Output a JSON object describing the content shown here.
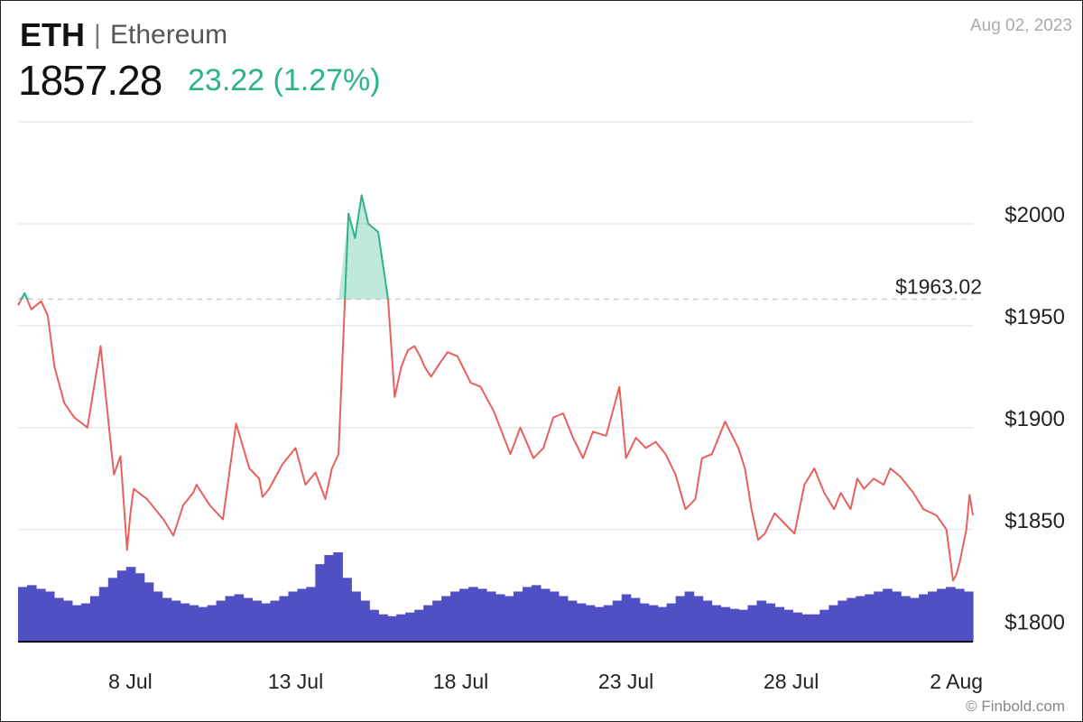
{
  "header": {
    "symbol": "ETH",
    "separator": "|",
    "name": "Ethereum",
    "price": "1857.28",
    "change": "23.22 (1.27%)",
    "date": "Aug 02, 2023"
  },
  "footer": {
    "credit": "© Finbold.com"
  },
  "colors": {
    "up": "#2db38a",
    "down": "#e8605d",
    "volume": "#5050c4",
    "grid": "#dddddd"
  },
  "chart_data": {
    "type": "line",
    "xlabel": "",
    "ylabel": "",
    "ylim": [
      1795,
      2050
    ],
    "y_ticks": [
      1800,
      1850,
      1900,
      1950,
      2000
    ],
    "y_tick_labels": [
      "$1800",
      "$1850",
      "$1900",
      "$1950",
      "$2000"
    ],
    "x_tick_positions": [
      5,
      10,
      15,
      20,
      25,
      30
    ],
    "x_tick_labels": [
      "8 Jul",
      "13 Jul",
      "18 Jul",
      "23 Jul",
      "28 Jul",
      "2 Aug"
    ],
    "xlim": [
      1.6,
      30.5
    ],
    "reference": {
      "value": 1963.02,
      "label": "$1963.02"
    },
    "grid": true,
    "series": [
      {
        "x": [
          1.6,
          1.8,
          2.0,
          2.3,
          2.5,
          2.7,
          3.0,
          3.3,
          3.7,
          4.1,
          4.5,
          4.7,
          4.9,
          5.0,
          5.1,
          5.5,
          6.0,
          6.3,
          6.6,
          6.9,
          7.0,
          7.4,
          7.8,
          8.2,
          8.6,
          8.9,
          9.0,
          9.2,
          9.6,
          10.0,
          10.3,
          10.6,
          10.9,
          11.1,
          11.3,
          11.6,
          11.8,
          12.0,
          12.2,
          12.5,
          12.8,
          13.0,
          13.2,
          13.4,
          13.6,
          13.8,
          13.9,
          14.1,
          14.3,
          14.6,
          14.9,
          15.3,
          15.6,
          16.0,
          16.5,
          16.8,
          17.2,
          17.5,
          17.8,
          18.1,
          18.4,
          18.7,
          19.0,
          19.4,
          19.8,
          20.0,
          20.3,
          20.6,
          20.9,
          21.2,
          21.5,
          21.8,
          22.1,
          22.3,
          22.6,
          23.0,
          23.4,
          23.6,
          23.8,
          24.0,
          24.2,
          24.5,
          24.8,
          25.1,
          25.4,
          25.7,
          26.0,
          26.3,
          26.5,
          26.8,
          27.0,
          27.2,
          27.5,
          27.8,
          28.0,
          28.3,
          28.7,
          29.0,
          29.4,
          29.7,
          29.9,
          30.0,
          30.1,
          30.3,
          30.4,
          30.5
        ],
        "y": [
          1960,
          1966,
          1958,
          1962,
          1955,
          1930,
          1912,
          1905,
          1900,
          1940,
          1877,
          1886,
          1840,
          1858,
          1870,
          1865,
          1855,
          1847,
          1862,
          1868,
          1872,
          1862,
          1855,
          1902,
          1880,
          1875,
          1866,
          1870,
          1882,
          1890,
          1872,
          1878,
          1865,
          1880,
          1887,
          2005,
          1993,
          2014,
          2000,
          1996,
          1963,
          1915,
          1930,
          1938,
          1940,
          1934,
          1930,
          1925,
          1930,
          1937,
          1935,
          1922,
          1920,
          1908,
          1887,
          1900,
          1885,
          1890,
          1905,
          1907,
          1895,
          1885,
          1898,
          1896,
          1920,
          1885,
          1895,
          1890,
          1893,
          1887,
          1877,
          1860,
          1865,
          1885,
          1887,
          1903,
          1890,
          1880,
          1860,
          1845,
          1848,
          1858,
          1853,
          1848,
          1872,
          1880,
          1868,
          1860,
          1868,
          1860,
          1875,
          1870,
          1875,
          1872,
          1880,
          1876,
          1868,
          1860,
          1857,
          1850,
          1825,
          1828,
          1834,
          1850,
          1867,
          1857
        ]
      }
    ],
    "volume": [
      60,
      62,
      58,
      55,
      48,
      45,
      40,
      42,
      50,
      60,
      70,
      78,
      82,
      75,
      65,
      55,
      48,
      45,
      42,
      40,
      38,
      40,
      45,
      50,
      52,
      48,
      45,
      42,
      45,
      50,
      55,
      58,
      60,
      85,
      95,
      98,
      70,
      55,
      45,
      35,
      30,
      28,
      30,
      32,
      35,
      40,
      45,
      50,
      55,
      58,
      60,
      58,
      55,
      52,
      50,
      55,
      60,
      62,
      58,
      55,
      50,
      45,
      42,
      40,
      38,
      40,
      45,
      52,
      48,
      42,
      40,
      38,
      42,
      50,
      55,
      50,
      45,
      40,
      38,
      36,
      35,
      40,
      45,
      42,
      38,
      35,
      32,
      30,
      30,
      35,
      40,
      45,
      48,
      50,
      52,
      55,
      58,
      55,
      50,
      48,
      52,
      55,
      58,
      60,
      58,
      55
    ]
  }
}
